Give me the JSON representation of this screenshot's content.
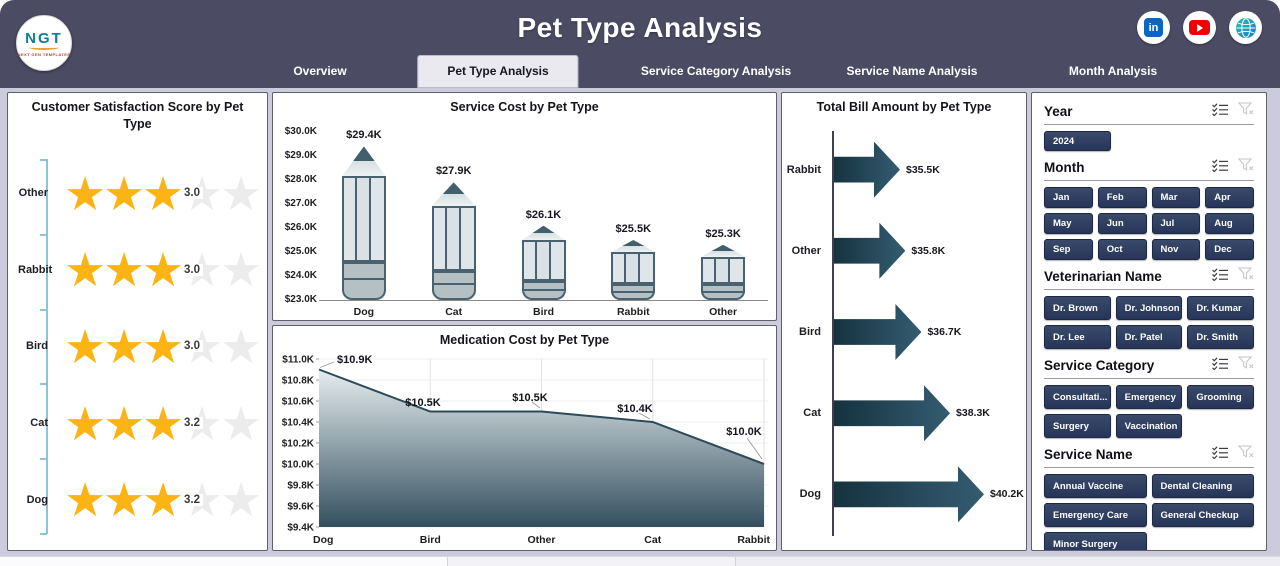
{
  "header": {
    "title": "Pet Type Analysis",
    "logo_text": "NGT",
    "logo_subtext": "NEXT GEN TEMPLATES"
  },
  "tabs": [
    {
      "label": "Overview",
      "active": false
    },
    {
      "label": "Pet Type Analysis",
      "active": true
    },
    {
      "label": "Service Category Analysis",
      "active": false
    },
    {
      "label": "Service Name Analysis",
      "active": false
    },
    {
      "label": "Month Analysis",
      "active": false
    }
  ],
  "social": [
    {
      "name": "linkedin"
    },
    {
      "name": "youtube"
    },
    {
      "name": "website"
    }
  ],
  "chart_data": [
    {
      "type": "bar",
      "subtype": "star-rating",
      "title": "Customer Satisfaction Score by Pet Type",
      "categories": [
        "Other",
        "Rabbit",
        "Bird",
        "Cat",
        "Dog"
      ],
      "values": [
        3.0,
        3.0,
        3.0,
        3.2,
        3.2
      ],
      "max_stars": 5,
      "star_color": "#fcb415",
      "empty_star_color": "#ececec"
    },
    {
      "type": "bar",
      "subtype": "pencil",
      "title": "Service Cost by Pet Type",
      "categories": [
        "Dog",
        "Cat",
        "Bird",
        "Rabbit",
        "Other"
      ],
      "values": [
        29.4,
        27.9,
        26.1,
        25.5,
        25.3
      ],
      "data_labels": [
        "$29.4K",
        "$27.9K",
        "$26.1K",
        "$25.5K",
        "$25.3K"
      ],
      "y_min": 23,
      "y_max": 30,
      "y_step": 1,
      "yticks": [
        "$23.0K",
        "$24.0K",
        "$25.0K",
        "$26.0K",
        "$27.0K",
        "$28.0K",
        "$29.0K",
        "$30.0K"
      ],
      "ylim": [
        23000,
        30000
      ]
    },
    {
      "type": "area",
      "title": "Medication Cost by Pet Type",
      "categories": [
        "Dog",
        "Bird",
        "Other",
        "Cat",
        "Rabbit"
      ],
      "values": [
        10.9,
        10.5,
        10.5,
        10.4,
        10.0
      ],
      "data_labels": [
        "$10.9K",
        "$10.5K",
        "$10.5K",
        "$10.4K",
        "$10.0K"
      ],
      "y_min": 9.4,
      "y_max": 11.0,
      "y_step": 0.2,
      "yticks": [
        "$9.4K",
        "$9.6K",
        "$9.8K",
        "$10.0K",
        "$10.2K",
        "$10.4K",
        "$10.6K",
        "$10.8K",
        "$11.0K"
      ],
      "grid": true,
      "line_color": "#2d4a59",
      "fill_top": "#e6edf0",
      "fill_bottom": "#33505e"
    },
    {
      "type": "bar",
      "subtype": "arrow",
      "orientation": "horizontal",
      "title": "Total Bill Amount by Pet Type",
      "categories": [
        "Rabbit",
        "Other",
        "Bird",
        "Cat",
        "Dog"
      ],
      "values": [
        35.5,
        35.8,
        36.7,
        38.3,
        40.2
      ],
      "data_labels": [
        "$35.5K",
        "$35.8K",
        "$36.7K",
        "$38.3K",
        "$40.2K"
      ],
      "bar_color": "#1f3e4e"
    }
  ],
  "filters": {
    "sections": [
      {
        "title": "Year",
        "items": [
          "2024"
        ]
      },
      {
        "title": "Month",
        "items": [
          "Jan",
          "Feb",
          "Mar",
          "Apr",
          "May",
          "Jun",
          "Jul",
          "Aug",
          "Sep",
          "Oct",
          "Nov",
          "Dec"
        ]
      },
      {
        "title": "Veterinarian Name",
        "items": [
          "Dr. Brown",
          "Dr. Johnson",
          "Dr. Kumar",
          "Dr. Lee",
          "Dr. Patel",
          "Dr. Smith"
        ]
      },
      {
        "title": "Service Category",
        "items": [
          "Consultati...",
          "Emergency",
          "Grooming",
          "Surgery",
          "Vaccination"
        ]
      },
      {
        "title": "Service Name",
        "items": [
          "Annual Vaccine",
          "Dental Cleaning",
          "Emergency Care",
          "General Checkup",
          "Minor Surgery"
        ]
      }
    ]
  },
  "colors": {
    "header_bg": "#4c4b64",
    "body_bg": "#cbcbdc",
    "accent_navy": "#2c3a5c",
    "star_gold": "#fcb415",
    "chart_slate": "#2f4f5f",
    "axis_blue": "#8cc4dc"
  }
}
